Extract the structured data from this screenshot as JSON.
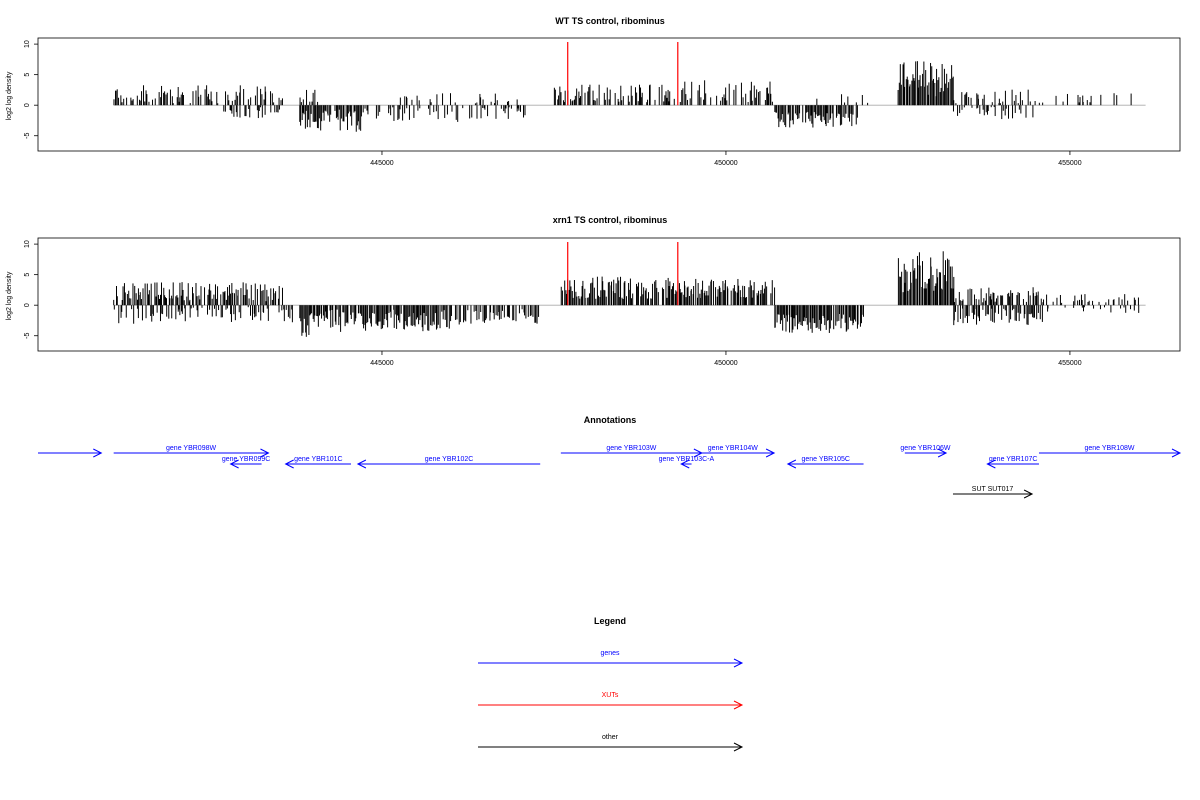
{
  "chart_data": [
    {
      "type": "bar",
      "id": "wt",
      "title": "WT TS control, ribominus",
      "ylabel": "log2 log density",
      "xlim": [
        440000,
        456600
      ],
      "ylim": [
        -7.5,
        11
      ],
      "yticks": [
        -5,
        0,
        5,
        10
      ],
      "xticks": [
        445000,
        450000,
        455000
      ],
      "markers_x": [
        447700,
        449300
      ],
      "marker_color": "#ff0000",
      "segments": [
        {
          "start": 441100,
          "end": 443600,
          "sign": 1,
          "base": 1.2,
          "amp": 2.0,
          "density": 0.5,
          "seed": 11
        },
        {
          "start": 442700,
          "end": 443500,
          "sign": -1,
          "base": 1.0,
          "amp": 1.2,
          "density": 0.4,
          "seed": 12
        },
        {
          "start": 443800,
          "end": 444100,
          "sign": 1,
          "base": 1.0,
          "amp": 1.5,
          "density": 0.3,
          "seed": 13
        },
        {
          "start": 443800,
          "end": 444700,
          "sign": -1,
          "base": 2.0,
          "amp": 2.3,
          "density": 0.75,
          "seed": 14
        },
        {
          "start": 444700,
          "end": 447100,
          "sign": -1,
          "base": 1.1,
          "amp": 1.6,
          "density": 0.45,
          "seed": 15
        },
        {
          "start": 445200,
          "end": 447000,
          "sign": 1,
          "base": 0.8,
          "amp": 1.2,
          "density": 0.2,
          "seed": 16
        },
        {
          "start": 447500,
          "end": 449400,
          "sign": 1,
          "base": 1.5,
          "amp": 1.8,
          "density": 0.55,
          "seed": 17
        },
        {
          "start": 449400,
          "end": 450700,
          "sign": 1,
          "base": 1.7,
          "amp": 2.4,
          "density": 0.55,
          "seed": 18
        },
        {
          "start": 450700,
          "end": 451900,
          "sign": -1,
          "base": 2.0,
          "amp": 1.6,
          "density": 0.85,
          "seed": 19
        },
        {
          "start": 451300,
          "end": 452200,
          "sign": 1,
          "base": 0.8,
          "amp": 1.0,
          "density": 0.15,
          "seed": 20
        },
        {
          "start": 452500,
          "end": 453300,
          "sign": 1,
          "base": 3.5,
          "amp": 3.8,
          "density": 0.98,
          "seed": 21
        },
        {
          "start": 453300,
          "end": 454600,
          "sign": 1,
          "base": 1.0,
          "amp": 1.5,
          "density": 0.35,
          "seed": 22
        },
        {
          "start": 453300,
          "end": 454600,
          "sign": -1,
          "base": 1.0,
          "amp": 1.3,
          "density": 0.35,
          "seed": 23
        },
        {
          "start": 454600,
          "end": 456000,
          "sign": 1,
          "base": 0.8,
          "amp": 1.2,
          "density": 0.15,
          "seed": 24
        }
      ]
    },
    {
      "type": "bar",
      "id": "xrn1",
      "title": "xrn1 TS control, ribominus",
      "ylabel": "log2 log density",
      "xlim": [
        440000,
        456600
      ],
      "ylim": [
        -7.5,
        11
      ],
      "yticks": [
        -5,
        0,
        5,
        10
      ],
      "xticks": [
        445000,
        450000,
        455000
      ],
      "markers_x": [
        447700,
        449300
      ],
      "marker_color": "#ff0000",
      "segments": [
        {
          "start": 441100,
          "end": 443600,
          "sign": 1,
          "base": 1.7,
          "amp": 2.0,
          "density": 0.75,
          "seed": 31
        },
        {
          "start": 441100,
          "end": 443700,
          "sign": -1,
          "base": 1.2,
          "amp": 1.8,
          "density": 0.4,
          "seed": 32
        },
        {
          "start": 443800,
          "end": 444200,
          "sign": -1,
          "base": 2.5,
          "amp": 3.0,
          "density": 0.95,
          "seed": 33
        },
        {
          "start": 444200,
          "end": 446000,
          "sign": -1,
          "base": 2.0,
          "amp": 2.3,
          "density": 0.9,
          "seed": 34
        },
        {
          "start": 446000,
          "end": 447300,
          "sign": -1,
          "base": 1.5,
          "amp": 1.6,
          "density": 0.6,
          "seed": 35
        },
        {
          "start": 447600,
          "end": 449400,
          "sign": 1,
          "base": 2.3,
          "amp": 2.3,
          "density": 0.85,
          "seed": 36
        },
        {
          "start": 449400,
          "end": 450700,
          "sign": 1,
          "base": 2.3,
          "amp": 2.0,
          "density": 0.9,
          "seed": 37
        },
        {
          "start": 450700,
          "end": 452000,
          "sign": -1,
          "base": 2.5,
          "amp": 2.0,
          "density": 0.95,
          "seed": 38
        },
        {
          "start": 452500,
          "end": 453300,
          "sign": 1,
          "base": 4.5,
          "amp": 4.3,
          "density": 1.0,
          "seed": 39
        },
        {
          "start": 453300,
          "end": 454600,
          "sign": 1,
          "base": 1.3,
          "amp": 1.6,
          "density": 0.7,
          "seed": 40
        },
        {
          "start": 453300,
          "end": 454600,
          "sign": -1,
          "base": 1.5,
          "amp": 1.7,
          "density": 0.7,
          "seed": 41
        },
        {
          "start": 454600,
          "end": 456000,
          "sign": 1,
          "base": 0.9,
          "amp": 1.0,
          "density": 0.35,
          "seed": 42
        },
        {
          "start": 454600,
          "end": 456000,
          "sign": -1,
          "base": 0.5,
          "amp": 0.8,
          "density": 0.15,
          "seed": 43
        }
      ]
    }
  ],
  "annotations": {
    "title": "Annotations",
    "xlim": [
      440000,
      456600
    ],
    "features": [
      {
        "label": "",
        "start": 440000,
        "end": 440920,
        "strand": "+",
        "type": "gene",
        "row": 0
      },
      {
        "label": "gene YBR098W",
        "start": 441100,
        "end": 443350,
        "strand": "+",
        "type": "gene",
        "row": 0
      },
      {
        "label": "gene YBR099C",
        "start": 442800,
        "end": 443250,
        "strand": "-",
        "type": "gene",
        "row": 1
      },
      {
        "label": "gene YBR101C",
        "start": 443600,
        "end": 444550,
        "strand": "-",
        "type": "gene",
        "row": 1
      },
      {
        "label": "gene YBR102C",
        "start": 444650,
        "end": 447300,
        "strand": "-",
        "type": "gene",
        "row": 1
      },
      {
        "label": "gene YBR103W",
        "start": 447600,
        "end": 449650,
        "strand": "+",
        "type": "gene",
        "row": 0
      },
      {
        "label": "gene YBR103C-A",
        "start": 449350,
        "end": 449500,
        "strand": "-",
        "type": "gene",
        "row": 1
      },
      {
        "label": "gene YBR104W",
        "start": 449500,
        "end": 450700,
        "strand": "+",
        "type": "gene",
        "row": 0
      },
      {
        "label": "gene YBR105C",
        "start": 450900,
        "end": 452000,
        "strand": "-",
        "type": "gene",
        "row": 1
      },
      {
        "label": "gene YBR106W",
        "start": 452600,
        "end": 453200,
        "strand": "+",
        "type": "gene",
        "row": 0
      },
      {
        "label": "gene YBR107C",
        "start": 453800,
        "end": 454550,
        "strand": "-",
        "type": "gene",
        "row": 1
      },
      {
        "label": "gene YBR108W",
        "start": 454550,
        "end": 456600,
        "strand": "+",
        "type": "gene",
        "row": 0
      },
      {
        "label": "SUT SUT017",
        "start": 453300,
        "end": 454450,
        "strand": "+",
        "type": "other",
        "row": 2
      }
    ]
  },
  "legend": {
    "title": "Legend",
    "entries": [
      {
        "label": "genes",
        "color": "#0000ff"
      },
      {
        "label": "XUTs",
        "color": "#ff0000"
      },
      {
        "label": "other",
        "color": "#000000"
      }
    ]
  },
  "colors": {
    "gene": "#0000ff",
    "xut": "#ff0000",
    "other": "#000000",
    "baseline": "#aaaaaa"
  }
}
